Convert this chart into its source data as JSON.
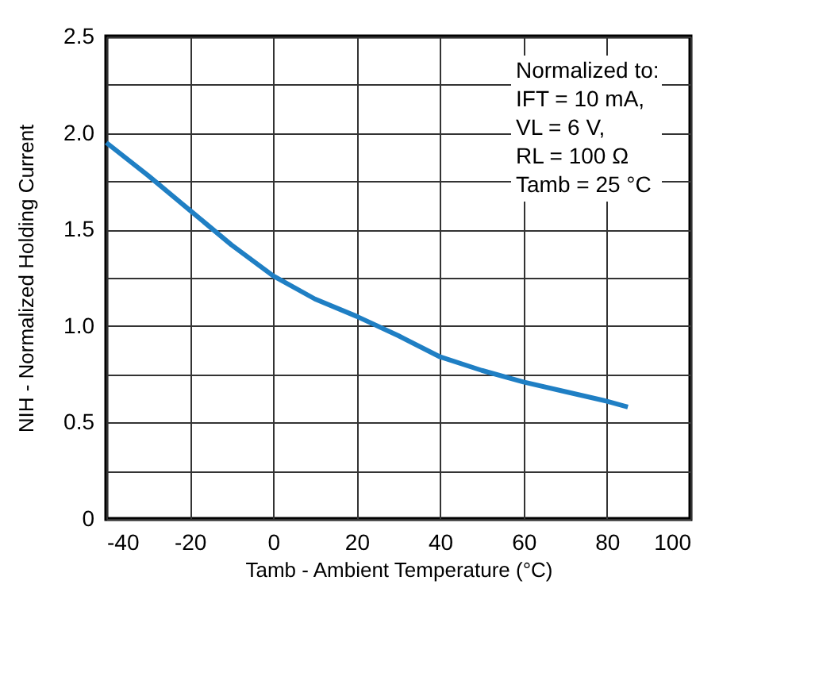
{
  "chart_data": {
    "type": "line",
    "xlabel": "Tamb - Ambient Temperature (°C)",
    "ylabel": "NIH - Normalized Holding Current",
    "x": [
      -40,
      -30,
      -20,
      -10,
      0,
      10,
      20,
      30,
      40,
      50,
      60,
      70,
      80,
      85
    ],
    "series": [
      {
        "color": "#1f7fc4",
        "values": [
          1.95,
          1.78,
          1.6,
          1.42,
          1.26,
          1.14,
          1.05,
          0.95,
          0.84,
          0.77,
          0.71,
          0.66,
          0.61,
          0.58
        ]
      }
    ],
    "xlim": [
      -40,
      100
    ],
    "xticks": [
      -40,
      -20,
      0,
      20,
      40,
      60,
      80,
      100
    ],
    "ylim": [
      0,
      2.5
    ],
    "yticks": [
      0,
      {
        "value": 0.25,
        "label": null
      },
      {
        "value": 0.5,
        "label": "0.5"
      },
      {
        "value": 0.75,
        "label": null
      },
      {
        "value": 1,
        "label": "1.0"
      },
      {
        "value": 1.25,
        "label": null
      },
      {
        "value": 1.5,
        "label": "1.5"
      },
      {
        "value": 1.75,
        "label": null
      },
      {
        "value": 2,
        "label": "2.0"
      },
      {
        "value": 2.25,
        "label": null
      },
      {
        "value": 2.5,
        "label": "2.5"
      }
    ],
    "annotations": [
      "Normalized to:",
      "IFT = 10 mA,",
      "VL = 6 V,",
      "RL = 100 Ω",
      "Tamb = 25 °C"
    ],
    "grid": true,
    "line_style": "solid",
    "marker": "none",
    "legend": false
  }
}
